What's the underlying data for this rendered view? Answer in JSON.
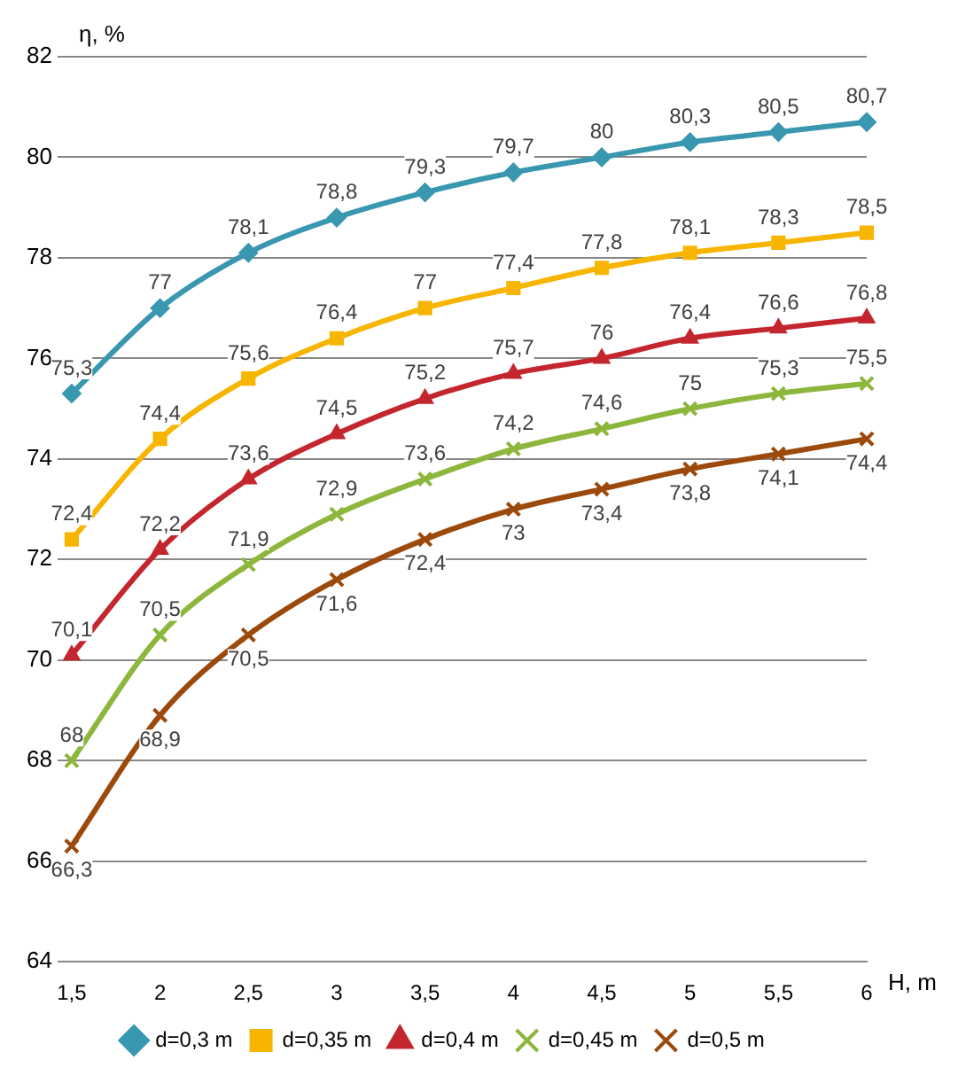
{
  "chart_data": {
    "type": "line",
    "ylabel": "η, %",
    "xlabel": "H, m",
    "categories": [
      "1,5",
      "2",
      "2,5",
      "3",
      "3,5",
      "4",
      "4,5",
      "5",
      "5,5",
      "6"
    ],
    "ylim": [
      64,
      82
    ],
    "yticks": [
      64,
      66,
      68,
      70,
      72,
      74,
      76,
      78,
      80,
      82
    ],
    "grid": "y",
    "legend": "bottom",
    "line_style": "solid",
    "series": [
      {
        "name": "d=0,3 m",
        "color": "#3a97b0",
        "marker": "diamond",
        "values": [
          75.3,
          77,
          78.1,
          78.8,
          79.3,
          79.7,
          80,
          80.3,
          80.5,
          80.7
        ],
        "value_labels": [
          "75,3",
          "77",
          "78,1",
          "78,8",
          "79,3",
          "79,7",
          "80",
          "80,3",
          "80,5",
          "80,7"
        ]
      },
      {
        "name": "d=0,35 m",
        "color": "#f7b500",
        "marker": "square",
        "values": [
          72.4,
          74.4,
          75.6,
          76.4,
          77,
          77.4,
          77.8,
          78.1,
          78.3,
          78.5
        ],
        "value_labels": [
          "72,4",
          "74,4",
          "75,6",
          "76,4",
          "77",
          "77,4",
          "77,8",
          "78,1",
          "78,3",
          "78,5"
        ]
      },
      {
        "name": "d=0,4 m",
        "color": "#c4262e",
        "marker": "triangle",
        "values": [
          70.1,
          72.2,
          73.6,
          74.5,
          75.2,
          75.7,
          76,
          76.4,
          76.6,
          76.8
        ],
        "value_labels": [
          "70,1",
          "72,2",
          "73,6",
          "74,5",
          "75,2",
          "75,7",
          "76",
          "76,4",
          "76,6",
          "76,8"
        ]
      },
      {
        "name": "d=0,45 m",
        "color": "#8db63c",
        "marker": "cross",
        "values": [
          68,
          70.5,
          71.9,
          72.9,
          73.6,
          74.2,
          74.6,
          75,
          75.3,
          75.5
        ],
        "value_labels": [
          "68",
          "70,5",
          "71,9",
          "72,9",
          "73,6",
          "74,2",
          "74,6",
          "75",
          "75,3",
          "75,5"
        ]
      },
      {
        "name": "d=0,5 m",
        "color": "#9c4a0c",
        "marker": "cross",
        "values": [
          66.3,
          68.9,
          70.5,
          71.6,
          72.4,
          73,
          73.4,
          73.8,
          74.1,
          74.4
        ],
        "value_labels": [
          "66,3",
          "68,9",
          "70,5",
          "71,6",
          "72,4",
          "73",
          "73,4",
          "73,8",
          "74,1",
          "74,4"
        ]
      }
    ]
  }
}
